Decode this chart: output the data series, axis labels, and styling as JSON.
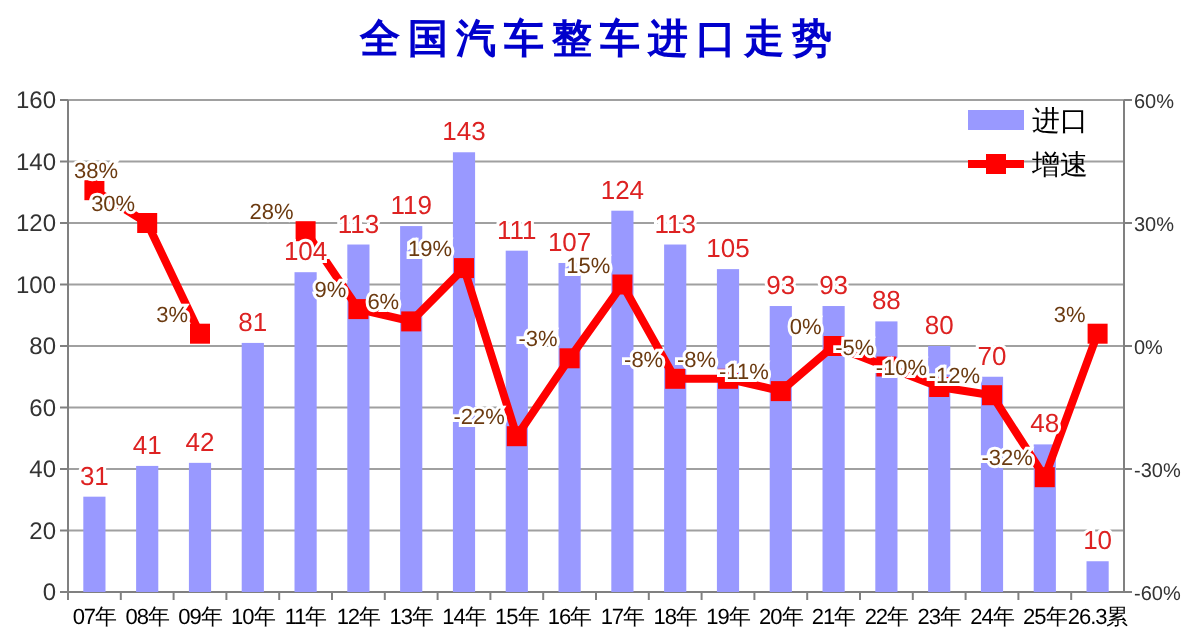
{
  "chart_data": {
    "type": "bar",
    "title": "全国汽车整车进口走势",
    "categories": [
      "07年",
      "08年",
      "09年",
      "10年",
      "11年",
      "12年",
      "13年",
      "14年",
      "15年",
      "16年",
      "17年",
      "18年",
      "19年",
      "20年",
      "21年",
      "22年",
      "23年",
      "24年",
      "25年",
      "26.3累"
    ],
    "series": [
      {
        "name": "进口",
        "color": "#9999ff",
        "values": [
          31,
          41,
          42,
          81,
          104,
          113,
          119,
          143,
          111,
          107,
          124,
          113,
          105,
          93,
          93,
          88,
          80,
          70,
          48,
          10
        ],
        "value_labels": [
          "31",
          "41",
          "42",
          "81",
          "104",
          "113",
          "119",
          "143",
          "111",
          "107",
          "124",
          "113",
          "105",
          "93",
          "93",
          "88",
          "80",
          "70",
          "48",
          "10"
        ]
      },
      {
        "name": "增速",
        "type": "line",
        "axis": "y2",
        "color": "#ff0000",
        "marker": "square",
        "line_style": "solid",
        "values": [
          38,
          30,
          3,
          null,
          28,
          9,
          6,
          19,
          -22,
          -3,
          15,
          -8,
          -8,
          -11,
          0,
          -5,
          -10,
          -12,
          -32,
          3
        ],
        "value_labels": [
          "38%",
          "30%",
          "3%",
          null,
          "28%",
          "9%",
          "6%",
          "19%",
          "-22%",
          "-3%",
          "15%",
          "-8%",
          "-8%",
          "-11%",
          "0%",
          "-5%",
          "-10%",
          "-12%",
          "-32%",
          "3%"
        ]
      }
    ],
    "ylim": [
      0,
      160
    ],
    "yticks": [
      0,
      20,
      40,
      60,
      80,
      100,
      120,
      140,
      160
    ],
    "y2lim": [
      -60,
      60
    ],
    "y2ticks": [
      {
        "value": -60,
        "label": "-60%"
      },
      {
        "value": -30,
        "label": "-30%"
      },
      {
        "value": 0,
        "label": "0%"
      },
      {
        "value": 30,
        "label": "30%"
      },
      {
        "value": 60,
        "label": "60%"
      }
    ],
    "grid": "y",
    "legend": "top right"
  }
}
